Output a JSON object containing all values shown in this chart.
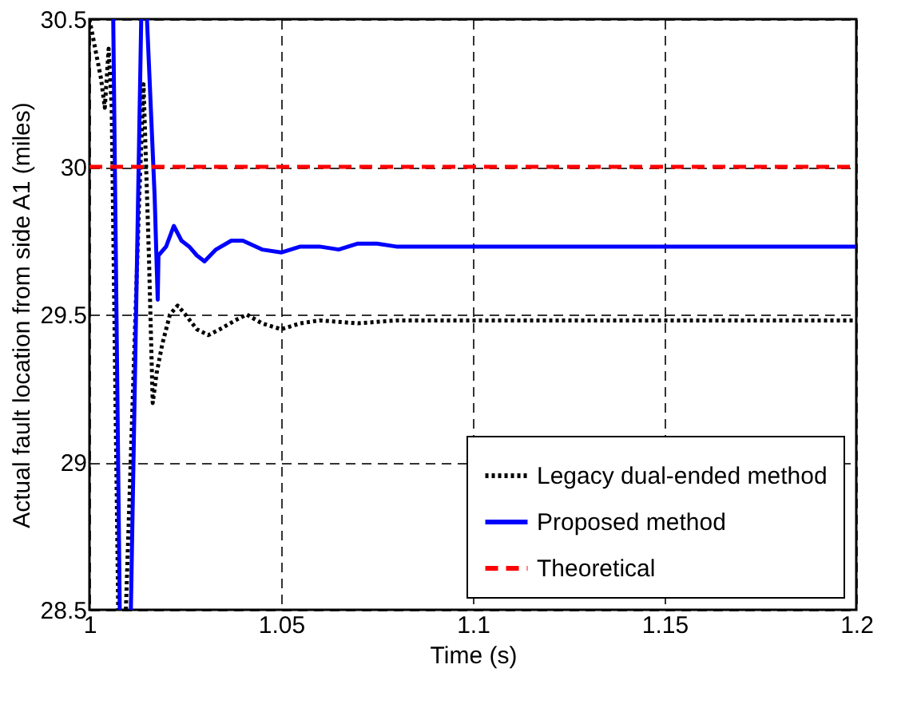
{
  "chart_data": {
    "type": "line",
    "xlabel": "Time (s)",
    "ylabel": "Actual fault location from side A1 (miles)",
    "xlim": [
      1,
      1.2
    ],
    "xticks": [
      1,
      1.05,
      1.1,
      1.15,
      1.2
    ],
    "ylim": [
      28.5,
      30.5
    ],
    "yticks": [
      28.5,
      29,
      29.5,
      30,
      30.5
    ],
    "grid": true,
    "legend": "bottom right",
    "series": [
      {
        "name": "Legacy dual-ended method",
        "color": "#000000",
        "line_style": "dotted",
        "x": [
          1.0,
          1.003,
          1.004,
          1.005,
          1.0058,
          1.0075,
          1.008,
          1.0095,
          1.013,
          1.0141,
          1.0155,
          1.0165,
          1.0175,
          1.019,
          1.021,
          1.023,
          1.025,
          1.028,
          1.031,
          1.034,
          1.038,
          1.041,
          1.045,
          1.05,
          1.055,
          1.06,
          1.07,
          1.08,
          1.1,
          1.12,
          1.15,
          1.2
        ],
        "values": [
          30.5,
          30.3,
          30.2,
          30.4,
          30.2,
          28.5,
          null,
          28.5,
          29.9,
          30.28,
          29.7,
          29.2,
          29.3,
          29.4,
          29.5,
          29.53,
          29.5,
          29.45,
          29.43,
          29.45,
          29.48,
          29.5,
          29.47,
          29.45,
          29.47,
          29.48,
          29.47,
          29.48,
          29.48,
          29.48,
          29.48,
          29.48
        ]
      },
      {
        "name": "Proposed method",
        "color": "#0000ff",
        "line_style": "solid",
        "x": [
          1.0062,
          1.0079,
          1.009,
          1.0108,
          1.0135,
          1.014,
          1.015,
          1.017,
          1.0178,
          1.018,
          1.02,
          1.022,
          1.024,
          1.026,
          1.028,
          1.03,
          1.033,
          1.037,
          1.04,
          1.045,
          1.05,
          1.055,
          1.06,
          1.065,
          1.07,
          1.075,
          1.08,
          1.1,
          1.12,
          1.15,
          1.2
        ],
        "values": [
          30.5,
          28.5,
          null,
          28.5,
          30.5,
          null,
          30.5,
          29.9,
          29.55,
          29.7,
          29.73,
          29.8,
          29.75,
          29.73,
          29.7,
          29.68,
          29.72,
          29.75,
          29.75,
          29.72,
          29.71,
          29.73,
          29.73,
          29.72,
          29.74,
          29.74,
          29.73,
          29.73,
          29.73,
          29.73,
          29.73
        ]
      },
      {
        "name": "Theoretical",
        "color": "#ff0000",
        "line_style": "dashed",
        "x": [
          1,
          1.2
        ],
        "values": [
          30,
          30
        ]
      }
    ]
  }
}
